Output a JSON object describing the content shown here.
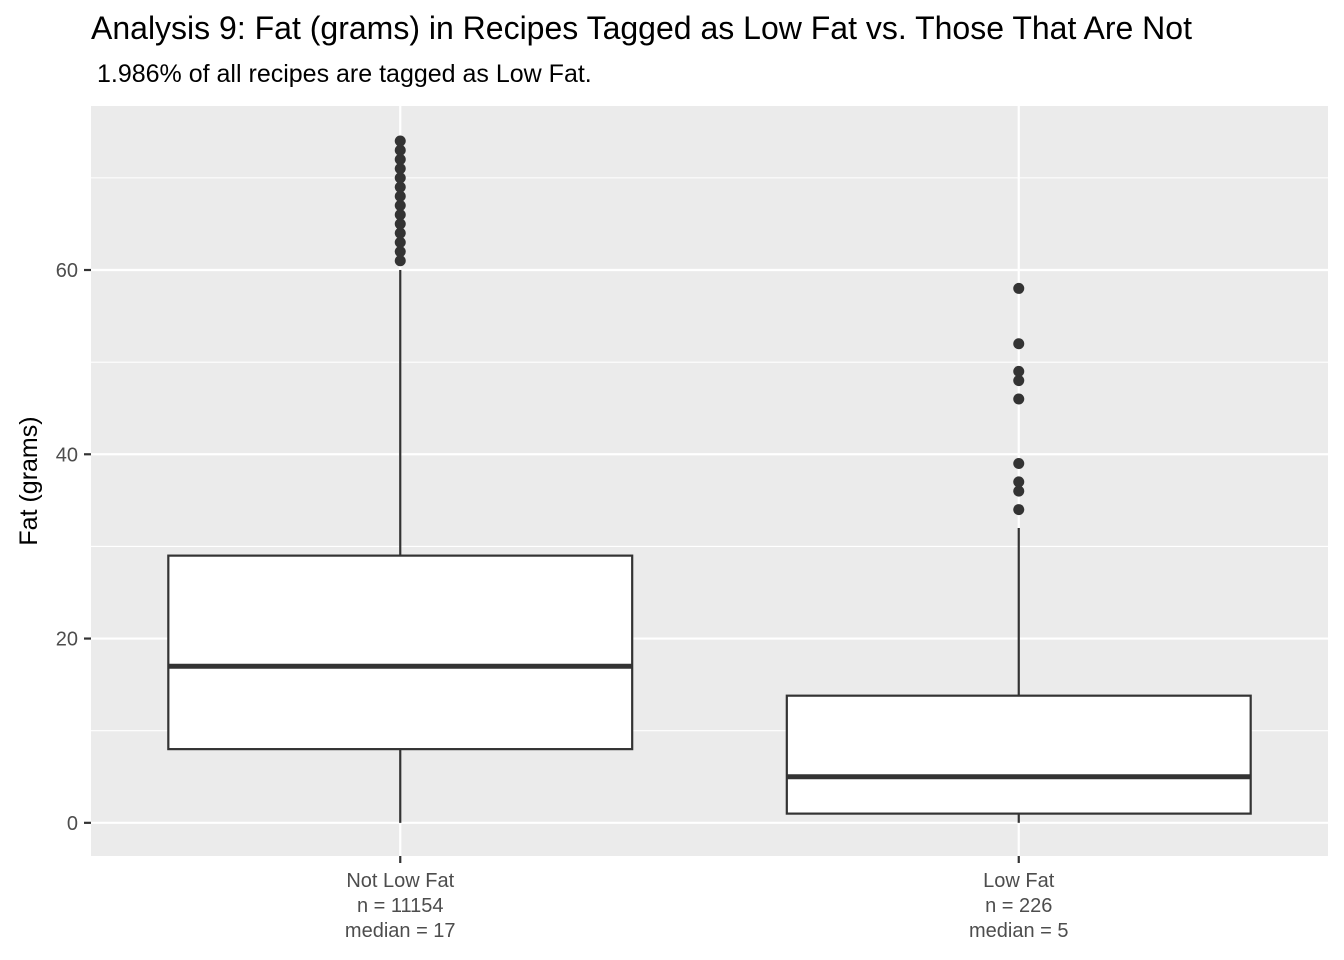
{
  "chart_data": {
    "type": "boxplot",
    "title": "Analysis 9: Fat (grams) in Recipes Tagged as Low Fat vs. Those That Are Not",
    "subtitle": "1.986% of all recipes are tagged as Low Fat.",
    "xlabel": "",
    "ylabel": "Fat (grams)",
    "ylim": [
      -3.6,
      77.8
    ],
    "y_ticks": [
      0,
      20,
      40,
      60
    ],
    "grid": true,
    "background": "#ebebeb",
    "box_fill": "#ffffff",
    "line_color": "#333333",
    "categories": [
      {
        "label_lines": [
          "Not Low Fat",
          "n = 11154",
          "median = 17"
        ],
        "n": 11154,
        "whisker_low": 0,
        "q1": 8,
        "median": 17,
        "q3": 29,
        "whisker_high": 60,
        "outliers": [
          61,
          62,
          63,
          64,
          65,
          66,
          67,
          68,
          69,
          70,
          71,
          72,
          73,
          74
        ]
      },
      {
        "label_lines": [
          "Low Fat",
          "n = 226",
          "median = 5"
        ],
        "n": 226,
        "whisker_low": 0,
        "q1": 1,
        "median": 5,
        "q3": 13.8,
        "whisker_high": 32,
        "outliers": [
          34,
          36,
          37,
          39,
          46,
          48,
          49,
          52,
          58
        ]
      }
    ]
  }
}
